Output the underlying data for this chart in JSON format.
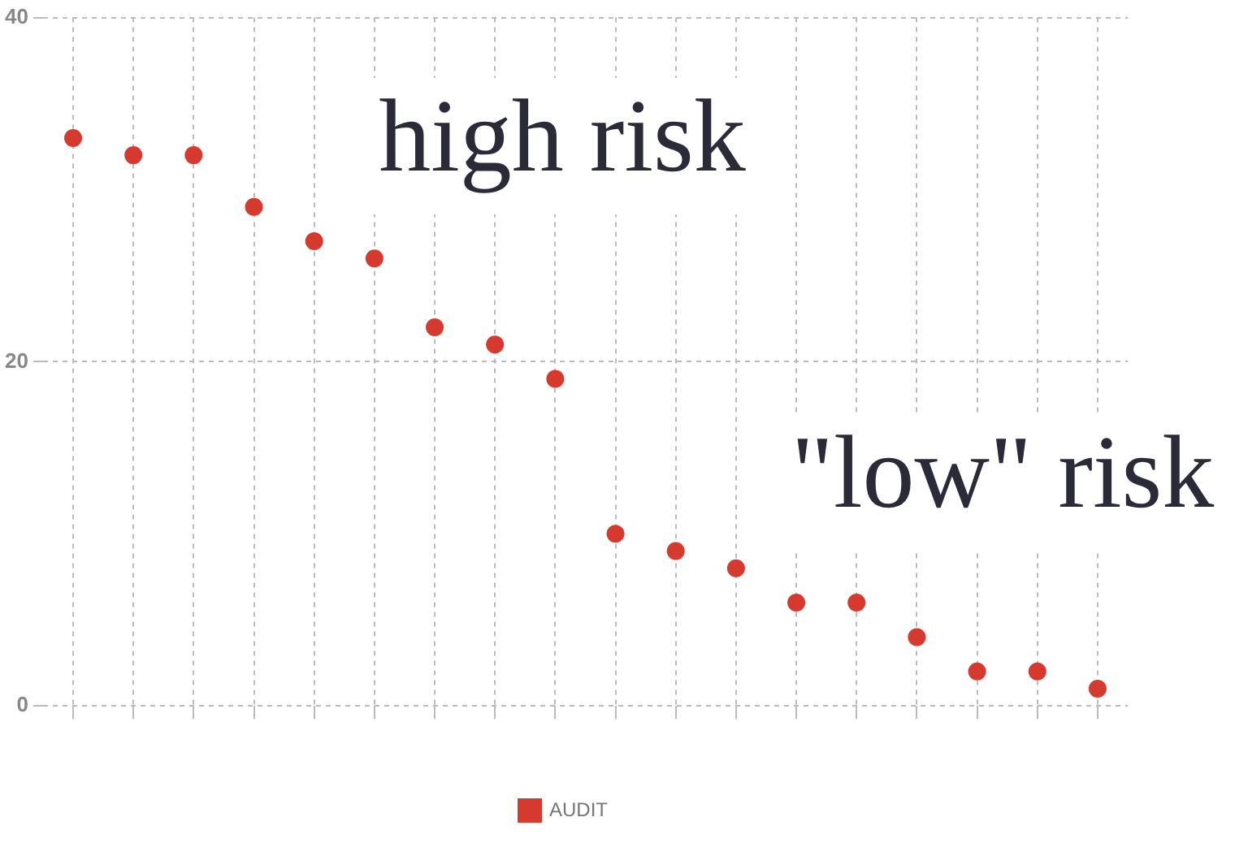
{
  "chart_data": {
    "type": "scatter",
    "categories": [
      null,
      null,
      null,
      null,
      null,
      null,
      null,
      null,
      null,
      null,
      null,
      null,
      null,
      null,
      null,
      null,
      null,
      null
    ],
    "series": [
      {
        "name": "AUDIT",
        "color": "#d63a2f",
        "values": [
          33,
          32,
          32,
          29,
          27,
          26,
          22,
          21,
          19,
          10,
          9,
          8,
          6,
          6,
          4,
          2,
          2,
          1
        ]
      }
    ],
    "ylim": [
      0,
      40
    ],
    "yticks": [
      0,
      20,
      40
    ],
    "grid": true,
    "legend": "bottom",
    "marker": "circle",
    "annotations": [
      "high risk",
      "\"low\" risk"
    ]
  }
}
